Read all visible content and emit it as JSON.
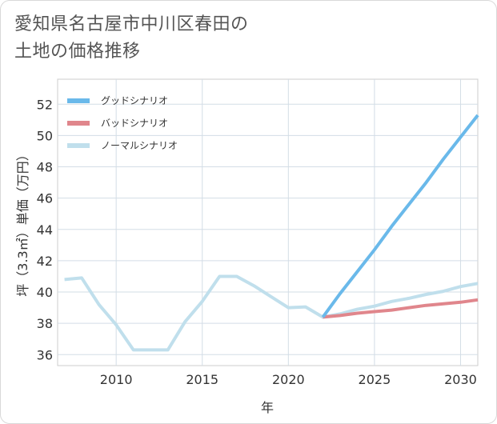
{
  "title_lines": [
    "愛知県名古屋市中川区春田の",
    "土地の価格推移"
  ],
  "chart_data": {
    "type": "line",
    "title": "愛知県名古屋市中川区春田の土地の価格推移",
    "xlabel": "年",
    "ylabel": "坪（3.3㎡）単価（万円）",
    "xlim": [
      2006.6,
      2031
    ],
    "ylim": [
      35.3,
      53.6
    ],
    "xticks": [
      2010,
      2015,
      2020,
      2025,
      2030
    ],
    "yticks": [
      36,
      38,
      40,
      42,
      44,
      46,
      48,
      50,
      52
    ],
    "legend_position": "top-left",
    "series": [
      {
        "name": "グッドシナリオ",
        "color": "#6ab9ea",
        "x": [
          2022,
          2023,
          2024,
          2025,
          2026,
          2027,
          2028,
          2029,
          2030,
          2031
        ],
        "y": [
          38.4,
          39.9,
          41.3,
          42.7,
          44.2,
          45.6,
          47.0,
          48.5,
          49.9,
          51.3
        ]
      },
      {
        "name": "バッドシナリオ",
        "color": "#e0868c",
        "x": [
          2022,
          2023,
          2024,
          2025,
          2026,
          2027,
          2028,
          2029,
          2030,
          2031
        ],
        "y": [
          38.4,
          38.5,
          38.65,
          38.75,
          38.85,
          39.0,
          39.15,
          39.25,
          39.35,
          39.5
        ]
      },
      {
        "name": "ノーマルシナリオ",
        "color": "#c0dfec",
        "x": [
          2007,
          2008,
          2009,
          2010,
          2011,
          2012,
          2013,
          2014,
          2015,
          2016,
          2017,
          2018,
          2019,
          2020,
          2021,
          2022,
          2023,
          2024,
          2025,
          2026,
          2027,
          2028,
          2029,
          2030,
          2031
        ],
        "y": [
          40.8,
          40.9,
          39.2,
          37.9,
          36.3,
          36.3,
          36.3,
          38.1,
          39.4,
          41.0,
          41.0,
          40.4,
          39.7,
          39.0,
          39.05,
          38.4,
          38.6,
          38.9,
          39.1,
          39.4,
          39.6,
          39.85,
          40.05,
          40.35,
          40.55
        ]
      }
    ]
  }
}
